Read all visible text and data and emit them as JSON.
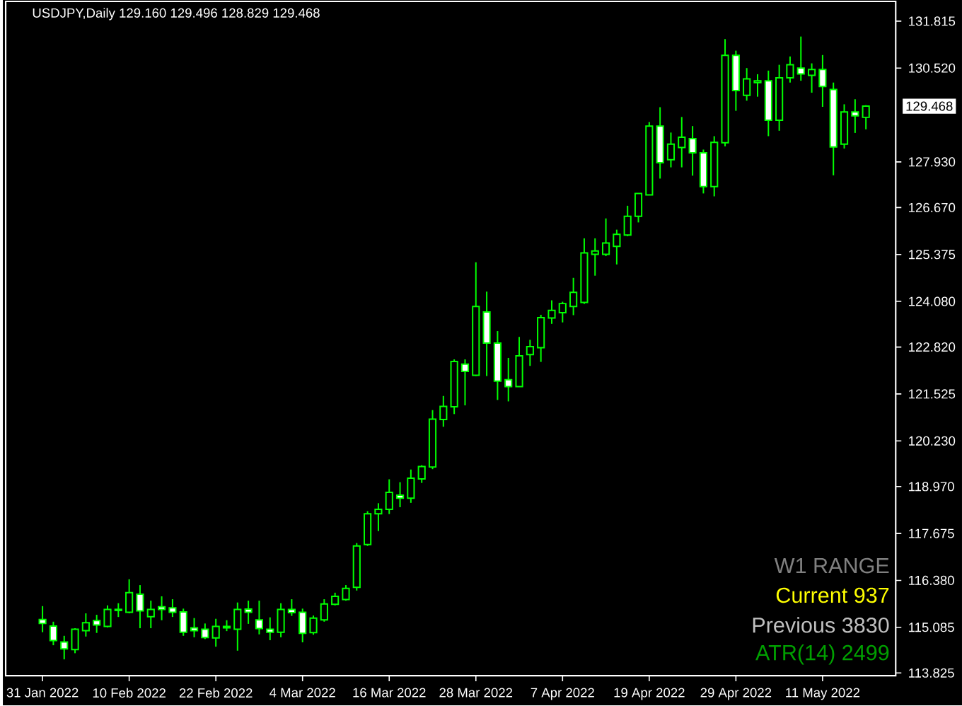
{
  "chart_data": {
    "type": "candlestick",
    "title": "USDJPY,Daily  129.160 129.496 128.829 129.468",
    "categories": [
      "31 Jan 2022",
      null,
      null,
      null,
      null,
      null,
      null,
      null,
      "10 Feb 2022",
      null,
      null,
      null,
      null,
      null,
      null,
      null,
      "22 Feb 2022",
      null,
      null,
      null,
      null,
      null,
      null,
      null,
      "4 Mar 2022",
      null,
      null,
      null,
      null,
      null,
      null,
      null,
      "16 Mar 2022",
      null,
      null,
      null,
      null,
      null,
      null,
      null,
      "28 Mar 2022",
      null,
      null,
      null,
      null,
      null,
      null,
      null,
      "7 Apr 2022",
      null,
      null,
      null,
      null,
      null,
      null,
      null,
      "19 Apr 2022",
      null,
      null,
      null,
      null,
      null,
      null,
      null,
      "29 Apr 2022",
      null,
      null,
      null,
      null,
      null,
      null,
      null,
      "11 May 2022",
      null,
      null,
      null,
      null
    ],
    "ohlc": [
      [
        115.3,
        115.67,
        114.95,
        115.19
      ],
      [
        115.12,
        115.24,
        114.59,
        114.72
      ],
      [
        114.68,
        114.85,
        114.2,
        114.49
      ],
      [
        114.47,
        115.06,
        114.37,
        115.03
      ],
      [
        114.99,
        115.47,
        114.83,
        115.21
      ],
      [
        115.27,
        115.43,
        114.93,
        115.15
      ],
      [
        115.11,
        115.69,
        115.08,
        115.58
      ],
      [
        115.55,
        115.75,
        115.37,
        115.58
      ],
      [
        115.5,
        116.41,
        115.47,
        116.04
      ],
      [
        116.0,
        116.25,
        115.06,
        115.54
      ],
      [
        115.38,
        115.82,
        115.06,
        115.58
      ],
      [
        115.65,
        115.94,
        115.28,
        115.58
      ],
      [
        115.62,
        115.86,
        115.37,
        115.5
      ],
      [
        115.51,
        115.6,
        114.85,
        114.95
      ],
      [
        115.07,
        115.34,
        114.81,
        114.99
      ],
      [
        115.03,
        115.19,
        114.76,
        114.8
      ],
      [
        114.79,
        115.32,
        114.55,
        115.11
      ],
      [
        115.07,
        115.28,
        114.98,
        115.11
      ],
      [
        115.03,
        115.77,
        114.44,
        115.58
      ],
      [
        115.59,
        115.82,
        115.18,
        115.5
      ],
      [
        115.29,
        115.82,
        114.89,
        115.05
      ],
      [
        115.03,
        115.36,
        114.73,
        114.95
      ],
      [
        114.95,
        115.75,
        114.81,
        115.58
      ],
      [
        115.58,
        115.86,
        115.4,
        115.49
      ],
      [
        115.5,
        115.6,
        114.67,
        114.92
      ],
      [
        114.94,
        115.41,
        114.88,
        115.34
      ],
      [
        115.29,
        115.86,
        115.24,
        115.73
      ],
      [
        115.72,
        116.04,
        115.69,
        115.94
      ],
      [
        115.85,
        116.25,
        115.82,
        116.16
      ],
      [
        116.19,
        117.41,
        116.1,
        117.33
      ],
      [
        117.37,
        118.29,
        117.33,
        118.22
      ],
      [
        118.22,
        118.51,
        117.74,
        118.34
      ],
      [
        118.34,
        119.17,
        118.21,
        118.81
      ],
      [
        118.73,
        119.09,
        118.4,
        118.65
      ],
      [
        118.65,
        119.44,
        118.52,
        119.2
      ],
      [
        119.18,
        119.56,
        119.07,
        119.52
      ],
      [
        119.51,
        121.08,
        119.45,
        120.83
      ],
      [
        120.82,
        121.47,
        120.62,
        121.18
      ],
      [
        121.17,
        122.48,
        120.97,
        122.42
      ],
      [
        122.35,
        122.48,
        121.21,
        122.15
      ],
      [
        122.04,
        125.16,
        122.02,
        123.94
      ],
      [
        123.79,
        124.35,
        122.02,
        122.93
      ],
      [
        122.93,
        123.26,
        121.36,
        121.88
      ],
      [
        121.92,
        122.52,
        121.32,
        121.73
      ],
      [
        121.73,
        123.1,
        121.73,
        122.58
      ],
      [
        122.61,
        123.02,
        122.3,
        122.83
      ],
      [
        122.8,
        123.71,
        122.41,
        123.63
      ],
      [
        123.62,
        124.11,
        123.46,
        123.83
      ],
      [
        123.77,
        124.07,
        123.5,
        124.02
      ],
      [
        123.94,
        124.73,
        123.7,
        124.33
      ],
      [
        124.05,
        125.82,
        124.01,
        125.42
      ],
      [
        125.38,
        125.82,
        124.79,
        125.47
      ],
      [
        125.38,
        126.37,
        125.33,
        125.69
      ],
      [
        125.6,
        126.06,
        125.1,
        125.93
      ],
      [
        125.91,
        126.72,
        125.88,
        126.43
      ],
      [
        126.43,
        127.06,
        126.26,
        127.06
      ],
      [
        127.02,
        129.03,
        127.02,
        128.92
      ],
      [
        128.92,
        129.44,
        127.47,
        127.91
      ],
      [
        127.99,
        128.74,
        127.78,
        128.42
      ],
      [
        128.33,
        129.17,
        127.78,
        128.61
      ],
      [
        128.57,
        128.92,
        127.55,
        128.18
      ],
      [
        128.18,
        128.27,
        127.06,
        127.25
      ],
      [
        127.25,
        128.64,
        126.98,
        128.47
      ],
      [
        128.46,
        131.32,
        128.36,
        130.87
      ],
      [
        130.87,
        131.0,
        129.34,
        129.9
      ],
      [
        129.77,
        130.52,
        129.62,
        130.22
      ],
      [
        130.12,
        130.35,
        129.73,
        130.17
      ],
      [
        130.17,
        130.45,
        128.64,
        129.08
      ],
      [
        129.08,
        130.61,
        128.79,
        130.25
      ],
      [
        130.25,
        130.84,
        130.12,
        130.61
      ],
      [
        130.52,
        131.39,
        130.17,
        130.36
      ],
      [
        130.32,
        130.65,
        129.84,
        130.48
      ],
      [
        130.48,
        130.88,
        129.45,
        130.01
      ],
      [
        129.93,
        130.12,
        127.56,
        128.34
      ],
      [
        128.42,
        129.52,
        128.3,
        129.31
      ],
      [
        129.31,
        129.66,
        128.73,
        129.2
      ],
      [
        129.16,
        129.496,
        128.829,
        129.468
      ]
    ],
    "color": "#00ff00",
    "ylim": [
      113.75,
      132.36
    ],
    "yticks": [
      113.825,
      115.085,
      {
        "value": 116.38,
        "label": "116.380"
      },
      121.525,
      {
        "value": 117.675,
        "label": "117.675"
      },
      {
        "value": 118.97,
        "label": "118.970"
      },
      {
        "value": 120.23,
        "label": "120.230"
      },
      {
        "value": 122.82,
        "label": "122.820"
      },
      {
        "value": 124.08,
        "label": "124.080"
      },
      125.375,
      {
        "value": 126.67,
        "label": "126.670"
      },
      {
        "value": 127.93,
        "label": "127.930"
      },
      {
        "value": 130.52,
        "label": "130.520"
      },
      131.815
    ],
    "annotations": [
      "129.468",
      "W1 RANGE",
      "Current 937",
      "Previous 3830",
      "ATR(14) 2499"
    ]
  }
}
